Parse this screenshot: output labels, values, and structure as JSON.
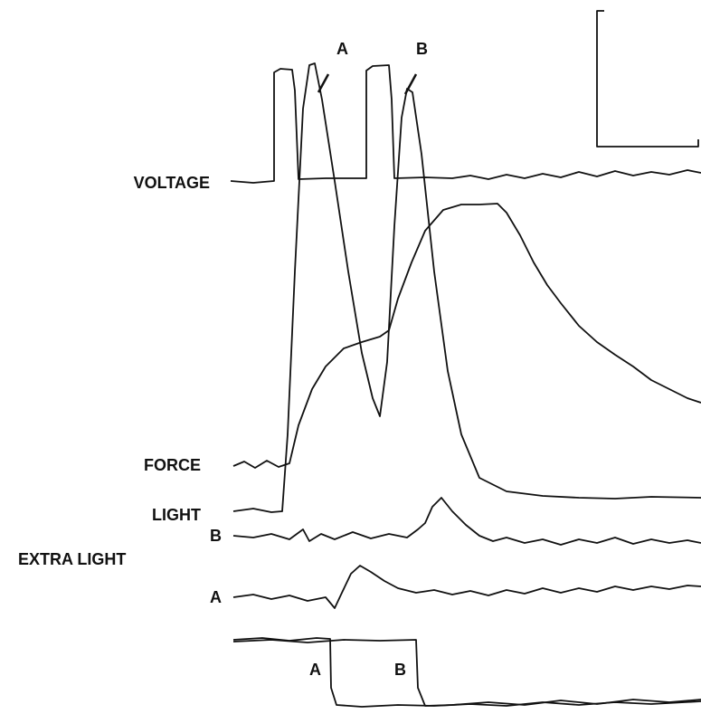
{
  "labels": {
    "top_a": "A",
    "top_b": "B",
    "voltage": "VOLTAGE",
    "force": "FORCE",
    "light": "LIGHT",
    "extra_b": "B",
    "extra_light": "EXTRA LIGHT",
    "extra_a": "A",
    "bottom_a": "A",
    "bottom_b": "B"
  }
}
